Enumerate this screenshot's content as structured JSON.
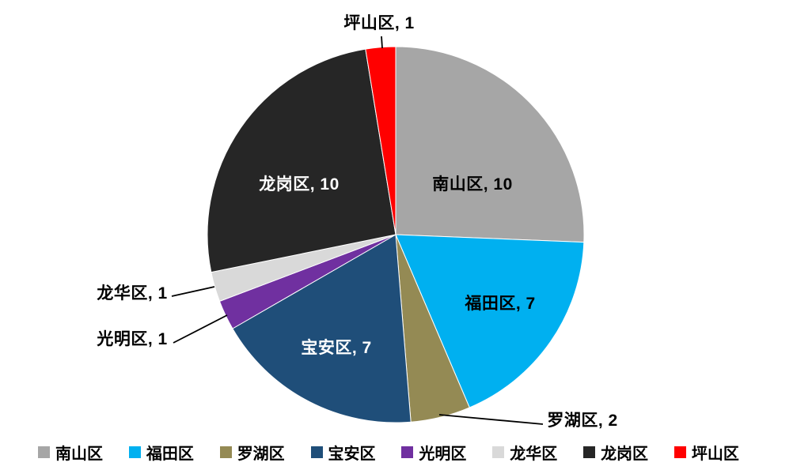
{
  "chart_data": {
    "type": "pie",
    "title": "",
    "total": 39,
    "categories": [
      "南山区",
      "福田区",
      "罗湖区",
      "宝安区",
      "光明区",
      "龙华区",
      "龙岗区",
      "坪山区"
    ],
    "values": [
      10,
      7,
      2,
      7,
      1,
      1,
      10,
      1
    ],
    "start_angle_deg": 0,
    "direction": "clockwise",
    "legend_position": "bottom",
    "grid": "off",
    "slices": [
      {
        "name": "南山区",
        "value": 10,
        "color": "#A6A6A6",
        "label": "南山区, 10",
        "label_placement": "inside",
        "label_color": "#000000"
      },
      {
        "name": "福田区",
        "value": 7,
        "color": "#00B0F0",
        "label": "福田区, 7",
        "label_placement": "inside",
        "label_color": "#000000"
      },
      {
        "name": "罗湖区",
        "value": 2,
        "color": "#948A54",
        "label": "罗湖区, 2",
        "label_placement": "outside",
        "label_color": "#000000"
      },
      {
        "name": "宝安区",
        "value": 7,
        "color": "#1F4E79",
        "label": "宝安区, 7",
        "label_placement": "inside",
        "label_color": "#FFFFFF"
      },
      {
        "name": "光明区",
        "value": 1,
        "color": "#7030A0",
        "label": "光明区, 1",
        "label_placement": "outside",
        "label_color": "#000000"
      },
      {
        "name": "龙华区",
        "value": 1,
        "color": "#D9D9D9",
        "label": "龙华区, 1",
        "label_placement": "outside",
        "label_color": "#000000"
      },
      {
        "name": "龙岗区",
        "value": 10,
        "color": "#262626",
        "label": "龙岗区, 10",
        "label_placement": "inside",
        "label_color": "#FFFFFF"
      },
      {
        "name": "坪山区",
        "value": 1,
        "color": "#FF0000",
        "label": "坪山区, 1",
        "label_placement": "outside",
        "label_color": "#000000"
      }
    ]
  }
}
